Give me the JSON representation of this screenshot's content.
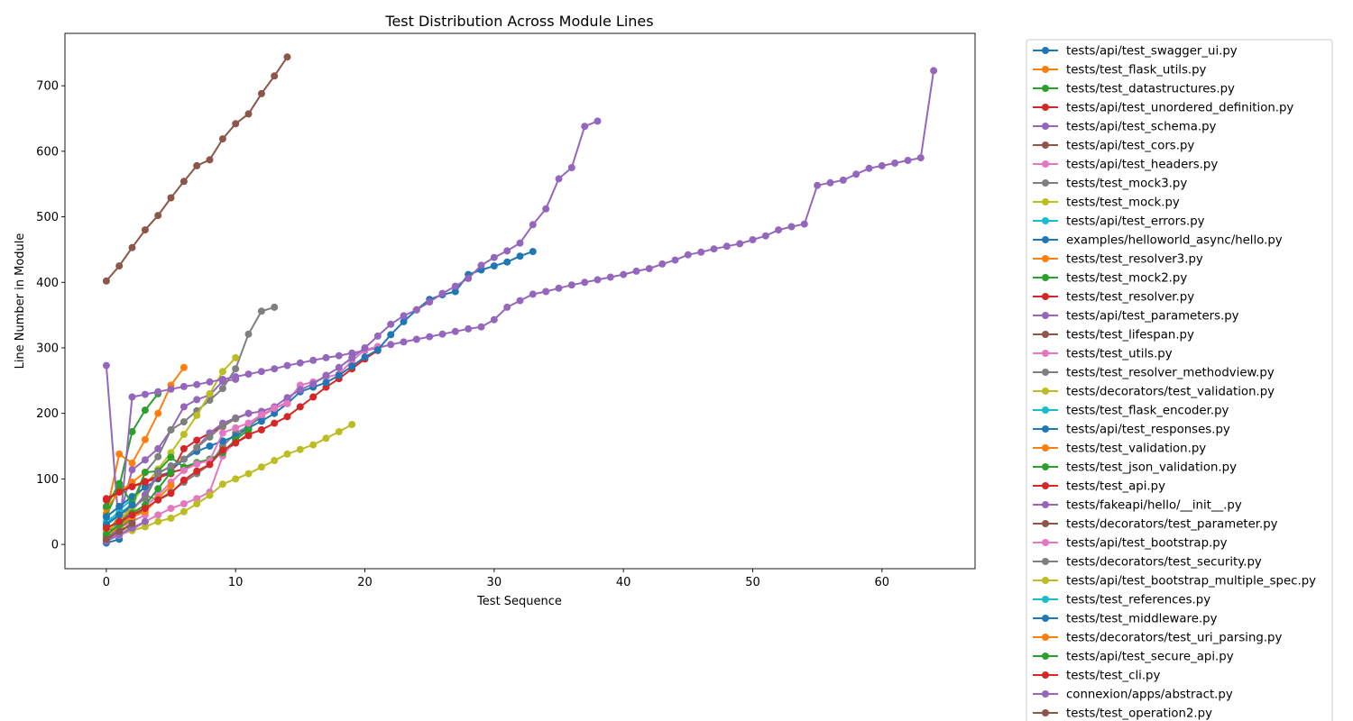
{
  "chart_data": {
    "type": "line",
    "title": "Test Distribution Across Module Lines",
    "xlabel": "Test Sequence",
    "ylabel": "Line Number in Module",
    "xlim": [
      -3.2,
      67.2
    ],
    "ylim": [
      -37,
      780
    ],
    "xticks": [
      0,
      10,
      20,
      30,
      40,
      50,
      60
    ],
    "yticks": [
      0,
      100,
      200,
      300,
      400,
      500,
      600,
      700
    ],
    "grid": false,
    "legend_position": "outside-right",
    "series": [
      {
        "name": "tests/api/test_swagger_ui.py",
        "color": "#1f77b4",
        "values": [
          2,
          8
        ]
      },
      {
        "name": "tests/test_flask_utils.py",
        "color": "#ff7f0e",
        "values": [
          47,
          138,
          124,
          160,
          200,
          243,
          270
        ]
      },
      {
        "name": "tests/test_datastructures.py",
        "color": "#2ca02c",
        "values": [
          43,
          88,
          172,
          205,
          230
        ]
      },
      {
        "name": "tests/api/test_unordered_definition.py",
        "color": "#d62728",
        "values": [
          12,
          22,
          27
        ]
      },
      {
        "name": "tests/api/test_schema.py",
        "color": "#9467bd",
        "values": [
          14,
          40,
          114,
          129,
          146,
          175,
          210,
          221,
          228,
          249,
          252
        ]
      },
      {
        "name": "tests/api/test_cors.py",
        "color": "#8c564b",
        "values": [
          10,
          20,
          28
        ]
      },
      {
        "name": "tests/api/test_headers.py",
        "color": "#e377c2",
        "values": [
          15,
          25,
          35,
          45
        ]
      },
      {
        "name": "tests/test_mock3.py",
        "color": "#7f7f7f",
        "values": [
          14,
          45,
          55,
          110,
          134,
          175,
          187,
          204,
          220,
          238,
          268,
          321,
          356,
          362
        ]
      },
      {
        "name": "tests/test_mock.py",
        "color": "#bcbd22",
        "values": [
          20,
          40,
          65,
          90,
          115,
          140,
          168,
          197,
          230,
          264,
          285
        ]
      },
      {
        "name": "tests/api/test_errors.py",
        "color": "#17becf",
        "values": [
          30,
          52,
          70
        ]
      },
      {
        "name": "examples/helloworld_async/hello.py",
        "color": "#1f77b4",
        "values": [
          6,
          21
        ]
      },
      {
        "name": "tests/test_resolver3.py",
        "color": "#ff7f0e",
        "values": [
          22,
          36,
          55
        ]
      },
      {
        "name": "tests/test_mock2.py",
        "color": "#2ca02c",
        "values": [
          10,
          25,
          40,
          55
        ]
      },
      {
        "name": "tests/test_resolver.py",
        "color": "#d62728",
        "values": [
          70,
          80,
          89,
          96,
          105,
          110,
          115,
          123,
          130,
          140,
          155,
          168,
          175,
          185,
          195,
          210,
          225,
          240,
          253,
          268,
          283,
          296
        ]
      },
      {
        "name": "tests/api/test_parameters.py",
        "color": "#9467bd",
        "values": [
          273,
          20,
          225,
          229,
          233,
          237,
          241,
          244,
          248,
          252,
          256,
          260,
          264,
          268,
          273,
          277,
          281,
          285,
          288,
          292,
          296,
          300,
          305,
          309,
          313,
          317,
          321,
          325,
          329,
          332,
          343,
          362,
          372,
          382,
          386,
          391,
          396,
          400,
          404,
          408,
          412,
          417,
          421,
          428,
          434,
          442,
          446,
          451,
          455,
          459,
          465,
          471,
          480,
          485,
          489,
          548,
          552,
          556,
          565,
          574,
          578,
          582,
          586,
          590,
          723
        ]
      },
      {
        "name": "tests/test_lifespan.py",
        "color": "#8c564b",
        "values": [
          5,
          15
        ]
      },
      {
        "name": "tests/test_utils.py",
        "color": "#e377c2",
        "values": [
          10,
          14,
          22,
          35,
          45,
          55,
          62,
          70,
          80,
          135,
          160,
          185,
          196,
          207,
          218,
          243,
          248,
          255,
          260,
          280,
          297,
          302
        ]
      },
      {
        "name": "tests/test_resolver_methodview.py",
        "color": "#7f7f7f",
        "values": [
          8,
          40,
          52,
          75,
          68,
          80,
          95,
          108,
          122,
          150,
          170,
          180,
          195
        ]
      },
      {
        "name": "tests/decorators/test_validation.py",
        "color": "#bcbd22",
        "values": [
          25,
          27,
          21,
          27,
          35,
          40,
          50,
          62,
          75,
          92,
          100,
          108,
          118,
          128,
          138,
          145,
          152,
          162,
          172,
          183
        ]
      },
      {
        "name": "tests/test_flask_encoder.py",
        "color": "#17becf",
        "values": [
          35,
          48,
          60
        ]
      },
      {
        "name": "tests/api/test_responses.py",
        "color": "#1f77b4",
        "values": [
          42,
          58,
          73,
          87,
          100,
          113,
          130,
          142,
          150,
          158,
          165,
          178,
          188,
          200,
          215,
          233,
          240,
          247,
          258,
          272,
          286,
          297,
          320,
          340,
          358,
          374,
          381,
          386,
          412,
          419,
          425,
          431,
          440,
          447
        ]
      },
      {
        "name": "tests/test_validation.py",
        "color": "#ff7f0e",
        "values": [
          55,
          80,
          95,
          110
        ]
      },
      {
        "name": "tests/test_json_validation.py",
        "color": "#2ca02c",
        "values": [
          58,
          93,
          62,
          110,
          112,
          133,
          118,
          125,
          130,
          140,
          160,
          175
        ]
      },
      {
        "name": "tests/test_api.py",
        "color": "#d62728",
        "values": [
          68,
          80,
          88,
          95,
          102,
          108,
          146,
          159,
          170,
          180,
          192,
          200
        ]
      },
      {
        "name": "tests/fakeapi/hello/__init__.py",
        "color": "#9467bd",
        "values": [
          5,
          26,
          52,
          76,
          110,
          118,
          130,
          148,
          170,
          185,
          193,
          200,
          203,
          210,
          224,
          236,
          245,
          258,
          270,
          285,
          300,
          318,
          336,
          349,
          358,
          370,
          383,
          394,
          406,
          426,
          438,
          448,
          460,
          488,
          512,
          558,
          575,
          638,
          646
        ]
      },
      {
        "name": "tests/decorators/test_parameter.py",
        "color": "#8c564b",
        "values": [
          402,
          425,
          453,
          480,
          502,
          529,
          554,
          578,
          587,
          619,
          642,
          657,
          688,
          715,
          744
        ]
      },
      {
        "name": "tests/api/test_bootstrap.py",
        "color": "#e377c2",
        "values": [
          18,
          26,
          45,
          58,
          75,
          95,
          113,
          123,
          128,
          170,
          178,
          185,
          198,
          208,
          215
        ]
      },
      {
        "name": "tests/decorators/test_security.py",
        "color": "#7f7f7f",
        "values": [
          10,
          30,
          56,
          70,
          108,
          120,
          130,
          148,
          164,
          181,
          192
        ]
      },
      {
        "name": "tests/api/test_bootstrap_multiple_spec.py",
        "color": "#bcbd22",
        "values": [
          20,
          38,
          55
        ]
      },
      {
        "name": "tests/test_references.py",
        "color": "#17becf",
        "values": [
          15,
          25
        ]
      },
      {
        "name": "tests/test_middleware.py",
        "color": "#1f77b4",
        "values": [
          30,
          45,
          60
        ]
      },
      {
        "name": "tests/decorators/test_uri_parsing.py",
        "color": "#ff7f0e",
        "values": [
          12,
          28,
          42,
          50,
          70,
          90
        ]
      },
      {
        "name": "tests/api/test_secure_api.py",
        "color": "#2ca02c",
        "values": [
          15,
          30,
          48,
          60,
          85,
          110
        ]
      },
      {
        "name": "tests/test_cli.py",
        "color": "#d62728",
        "values": [
          25,
          35,
          45,
          55,
          68,
          78,
          98,
          112,
          122,
          144,
          155,
          166
        ]
      },
      {
        "name": "connexion/apps/abstract.py",
        "color": "#9467bd",
        "values": [
          5,
          15,
          25,
          35
        ]
      },
      {
        "name": "tests/test_operation2.py",
        "color": "#8c564b",
        "values": [
          8,
          20,
          32
        ]
      }
    ]
  }
}
